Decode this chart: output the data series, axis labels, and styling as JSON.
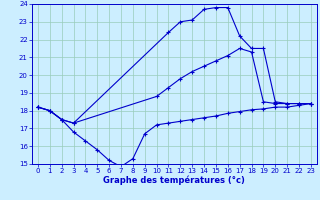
{
  "xlabel": "Graphe des températures (°c)",
  "bg_color": "#cceeff",
  "grid_color": "#99ccbb",
  "line_color": "#0000cc",
  "xlim": [
    -0.5,
    23.5
  ],
  "ylim": [
    15,
    24
  ],
  "yticks": [
    15,
    16,
    17,
    18,
    19,
    20,
    21,
    22,
    23,
    24
  ],
  "xticks": [
    0,
    1,
    2,
    3,
    4,
    5,
    6,
    7,
    8,
    9,
    10,
    11,
    12,
    13,
    14,
    15,
    16,
    17,
    18,
    19,
    20,
    21,
    22,
    23
  ],
  "curve1_x": [
    0,
    1,
    2,
    3,
    11,
    12,
    13,
    14,
    15,
    16,
    17,
    18,
    19,
    20,
    21,
    22,
    23
  ],
  "curve1_y": [
    18.2,
    18.0,
    17.5,
    17.3,
    22.4,
    23.0,
    23.1,
    23.7,
    23.8,
    23.8,
    22.2,
    21.5,
    21.5,
    18.5,
    18.4,
    18.4,
    18.4
  ],
  "curve2_x": [
    0,
    1,
    2,
    3,
    10,
    11,
    12,
    13,
    14,
    15,
    16,
    17,
    18,
    19,
    20,
    21,
    22,
    23
  ],
  "curve2_y": [
    18.2,
    18.0,
    17.5,
    17.3,
    18.8,
    19.3,
    19.8,
    20.2,
    20.5,
    20.8,
    21.1,
    21.5,
    21.3,
    18.5,
    18.4,
    18.4,
    18.4,
    18.4
  ],
  "curve3_x": [
    0,
    1,
    2,
    3,
    4,
    5,
    6,
    7,
    8,
    9,
    10,
    11,
    12,
    13,
    14,
    15,
    16,
    17,
    18,
    19,
    20,
    21,
    22,
    23
  ],
  "curve3_y": [
    18.2,
    18.0,
    17.5,
    16.8,
    16.3,
    15.8,
    15.2,
    14.85,
    15.3,
    16.7,
    17.2,
    17.3,
    17.4,
    17.5,
    17.6,
    17.7,
    17.85,
    17.95,
    18.05,
    18.1,
    18.2,
    18.2,
    18.3,
    18.4
  ]
}
